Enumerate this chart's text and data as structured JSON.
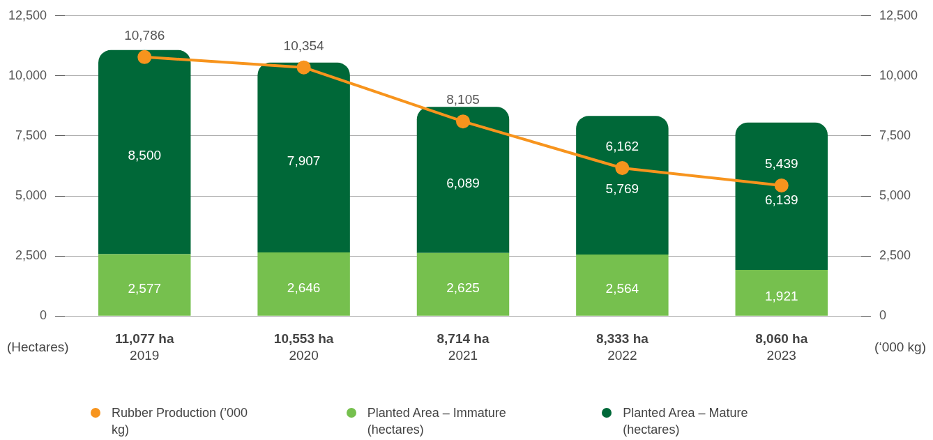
{
  "chart_data": {
    "type": "bar",
    "categories": [
      "2019",
      "2020",
      "2021",
      "2022",
      "2023"
    ],
    "totals": [
      "11,077 ha",
      "10,553 ha",
      "8,714 ha",
      "8,333 ha",
      "8,060 ha"
    ],
    "stacked": true,
    "series": [
      {
        "name": "Rubber Production (’000 kg)",
        "type": "line",
        "axis": "y2",
        "color": "#f7941d",
        "values": [
          10786,
          10354,
          8105,
          6162,
          5439
        ],
        "value_labels": [
          "10,786",
          "10,354",
          "8,105",
          "6,162",
          "5,439"
        ]
      },
      {
        "name": "Planted Area – Immature (hectares)",
        "color": "#76c04e",
        "values": [
          2577,
          2646,
          2625,
          2564,
          1921
        ],
        "value_labels": [
          "2,577",
          "2,646",
          "2,625",
          "2,564",
          "1,921"
        ]
      },
      {
        "name": "Planted Area – Mature (hectares)",
        "color": "#006838",
        "values": [
          8500,
          7907,
          6089,
          5769,
          6139
        ],
        "value_labels": [
          "8,500",
          "7,907",
          "6,089",
          "5,769",
          "6,139"
        ]
      }
    ],
    "ylabel": "(Hectares)",
    "y2label": "(‘000 kg)",
    "ylim": [
      0,
      12500
    ],
    "yticks": [
      0,
      {
        "value": 2500,
        "label": "2,500"
      },
      {
        "value": 5000,
        "label": "5,000"
      },
      {
        "value": 7500,
        "label": "7,500"
      },
      {
        "value": 10000,
        "label": "10,000"
      },
      {
        "value": 12500,
        "label": "12,500"
      }
    ],
    "y2lim": [
      0,
      12500
    ],
    "y2ticks": [
      0,
      {
        "value": 2500,
        "label": "2,500"
      },
      {
        "value": 5000,
        "label": "5,000"
      },
      {
        "value": 7500,
        "label": "7,500"
      },
      {
        "value": 10000,
        "label": "10,000"
      },
      {
        "value": 12500,
        "label": "12,500"
      }
    ],
    "grid": "y",
    "legend": "bottom",
    "marker": "circle",
    "line_style": "solid"
  }
}
